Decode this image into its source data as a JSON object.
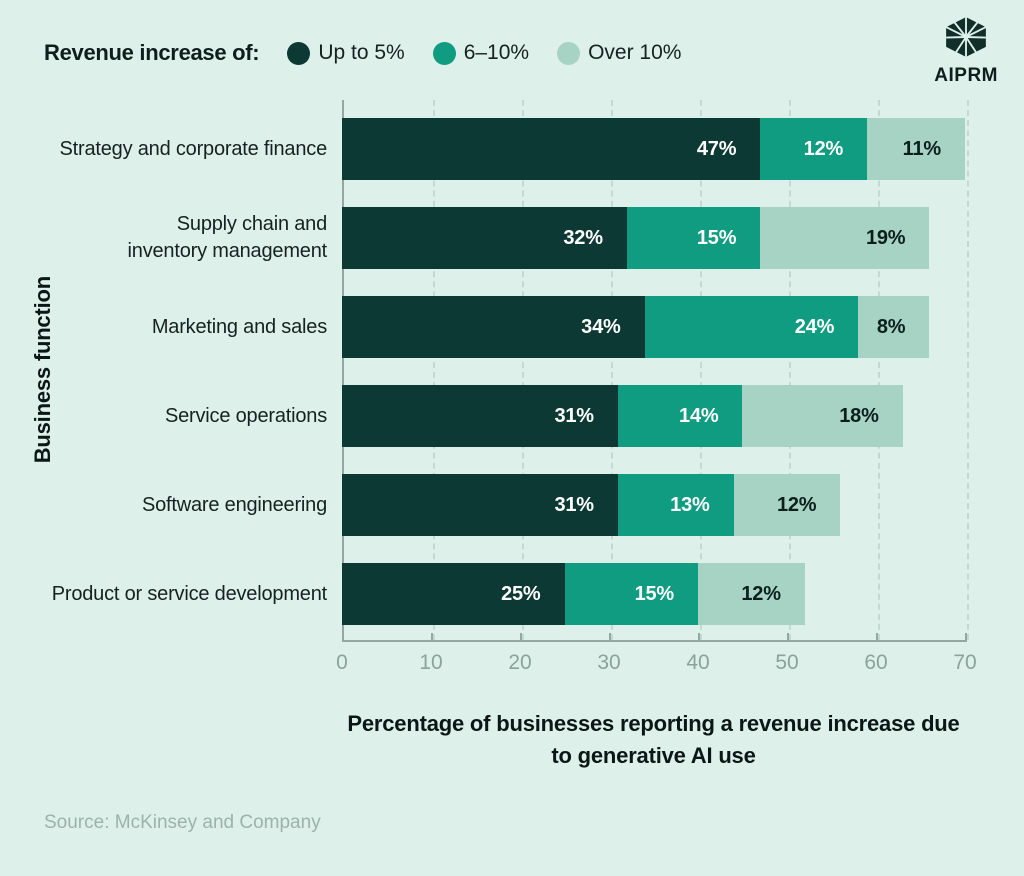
{
  "page": {
    "background": "#def0ea"
  },
  "legend": {
    "title": "Revenue increase of:",
    "items": [
      {
        "label": "Up to 5%",
        "color": "#0c3933"
      },
      {
        "label": "6–10%",
        "color": "#0f9c80"
      },
      {
        "label": "Over 10%",
        "color": "#a6d3c3"
      }
    ]
  },
  "logo": {
    "text": "AIPRM"
  },
  "chart_data": {
    "type": "bar",
    "orientation": "horizontal",
    "stacked": true,
    "categories": [
      "Strategy and corporate finance",
      "Supply chain and\ninventory management",
      "Marketing and sales",
      "Service operations",
      "Software engineering",
      "Product or service development"
    ],
    "series": [
      {
        "name": "Up to 5%",
        "color": "#0c3933",
        "label_color": "#ffffff",
        "values": [
          47,
          32,
          34,
          31,
          31,
          25
        ]
      },
      {
        "name": "6–10%",
        "color": "#0f9c80",
        "label_color": "#ffffff",
        "values": [
          12,
          15,
          24,
          14,
          13,
          15
        ]
      },
      {
        "name": "Over 10%",
        "color": "#a6d3c3",
        "label_color": "#0c1f1b",
        "values": [
          11,
          19,
          8,
          18,
          12,
          12
        ]
      }
    ],
    "value_suffix": "%",
    "xlabel": "Percentage of businesses reporting a revenue increase due to generative AI use",
    "ylabel": "Business function",
    "xlim": [
      0,
      70
    ],
    "xticks": [
      0,
      10,
      20,
      30,
      40,
      50,
      60,
      70
    ],
    "grid": "dashed-vertical",
    "legend_position": "top"
  },
  "footer": {
    "source": "Source: McKinsey and Company"
  }
}
